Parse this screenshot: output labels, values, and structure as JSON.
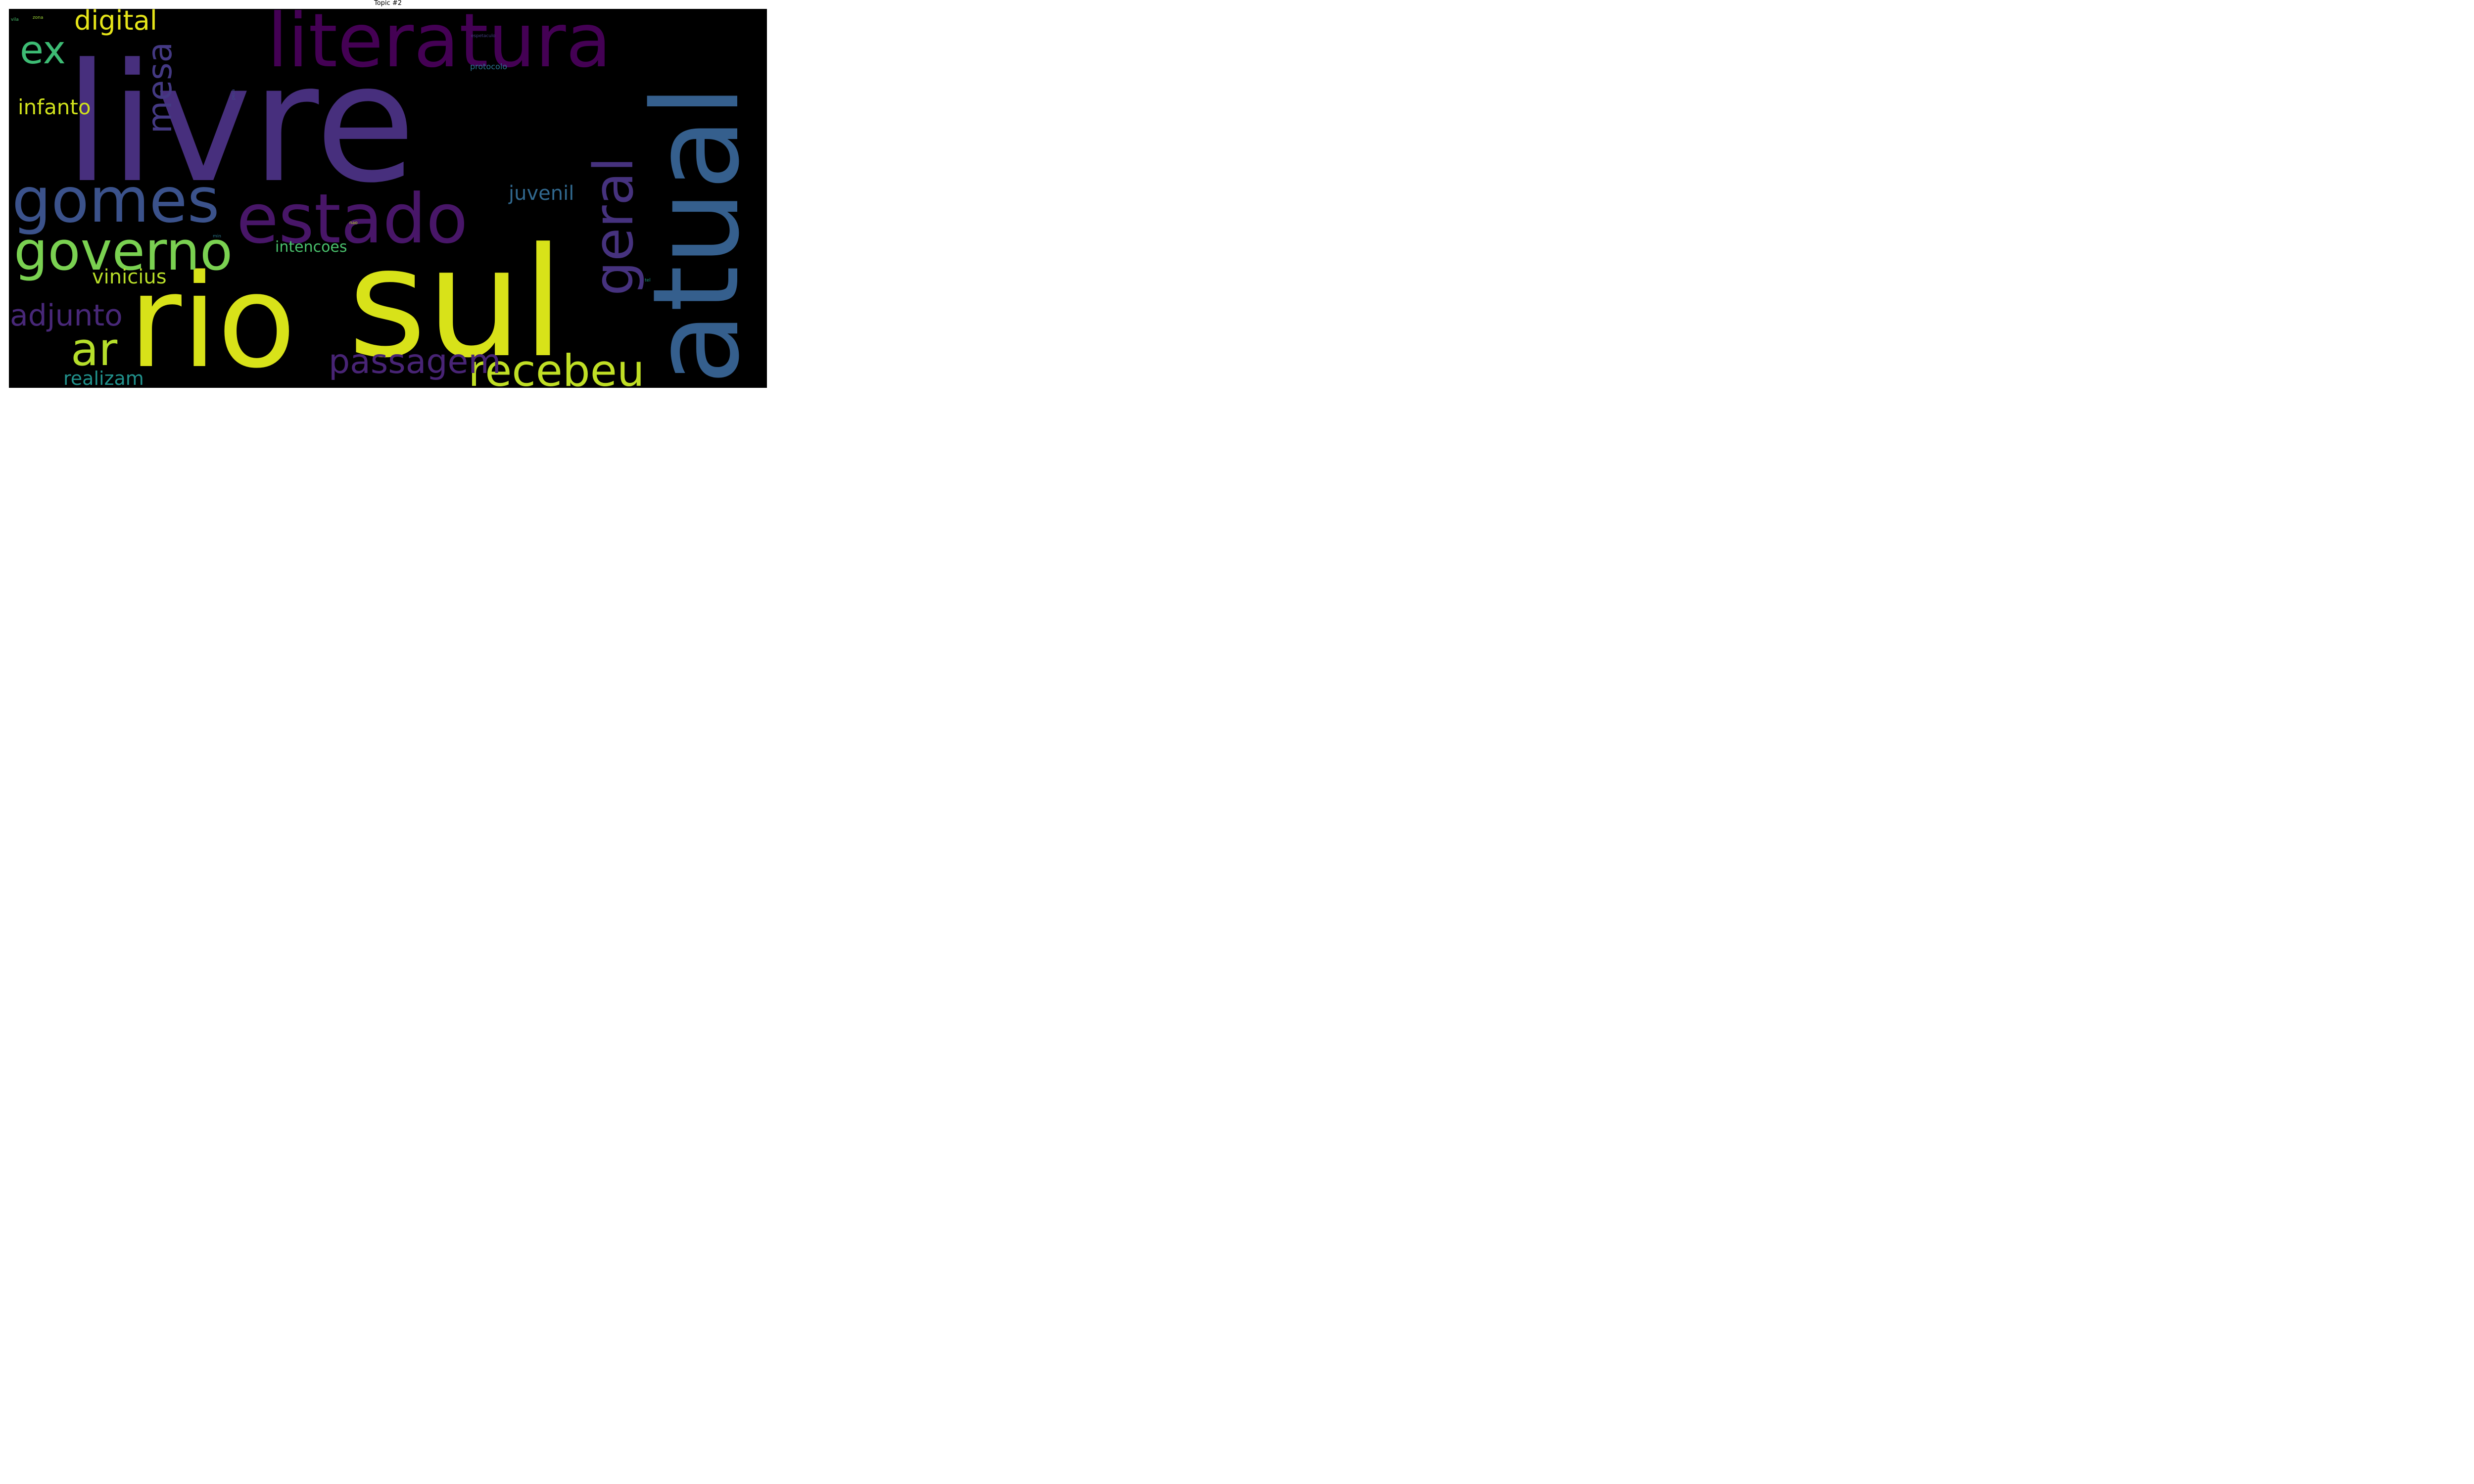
{
  "title": "Topic #2",
  "words": [
    {
      "text": "livre",
      "color": "#472f7d"
    },
    {
      "text": "rio",
      "color": "#d8e219"
    },
    {
      "text": "sul",
      "color": "#d8e219"
    },
    {
      "text": "literatura",
      "color": "#440154"
    },
    {
      "text": "atual",
      "color": "#355f8d"
    },
    {
      "text": "gomes",
      "color": "#3b528b"
    },
    {
      "text": "estado",
      "color": "#481668"
    },
    {
      "text": "governo",
      "color": "#7ad151"
    },
    {
      "text": "geral",
      "color": "#46327e"
    },
    {
      "text": "ar",
      "color": "#b5de2b"
    },
    {
      "text": "recebeu",
      "color": "#c0df25"
    },
    {
      "text": "passagem",
      "color": "#482475"
    },
    {
      "text": "mesa",
      "color": "#443983"
    },
    {
      "text": "ex",
      "color": "#3dbc74"
    },
    {
      "text": "digital",
      "color": "#e5e419"
    },
    {
      "text": "adjunto",
      "color": "#482878"
    },
    {
      "text": "infanto",
      "color": "#d0e11c"
    },
    {
      "text": "juvenil",
      "color": "#31688e"
    },
    {
      "text": "vinicius",
      "color": "#b8de29"
    },
    {
      "text": "realizam",
      "color": "#21918c"
    },
    {
      "text": "intencoes",
      "color": "#4ac16d"
    },
    {
      "text": "protocolo",
      "color": "#2c728e"
    },
    {
      "text": "espetaculo",
      "color": "#433e85"
    },
    {
      "text": "peca",
      "color": "#3e4989"
    },
    {
      "text": "nao",
      "color": "#bddf26"
    },
    {
      "text": "min",
      "color": "#2a788e"
    },
    {
      "text": "tel",
      "color": "#1f9e89"
    },
    {
      "text": "vila",
      "color": "#4ac16d"
    },
    {
      "text": "zona",
      "color": "#a0da39"
    }
  ]
}
